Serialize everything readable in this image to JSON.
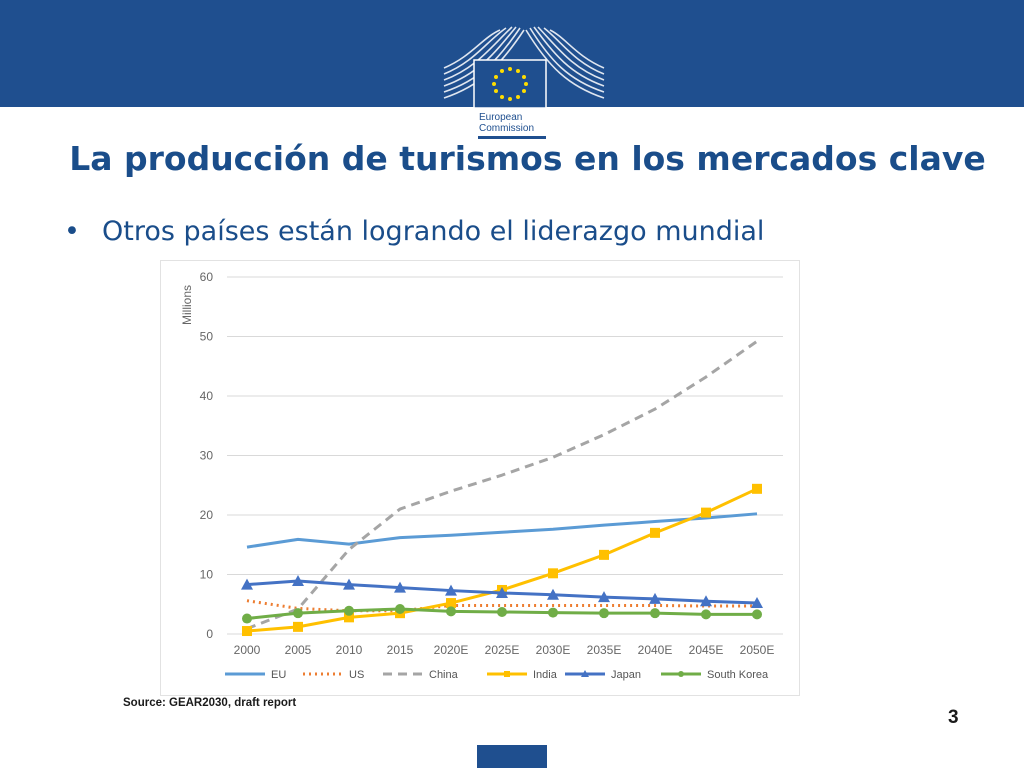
{
  "header": {
    "logo_line1": "European",
    "logo_line2": "Commission"
  },
  "slide": {
    "title": "La producción de turismos en los mercados clave",
    "bullet": "Otros países están logrando el liderazgo mundial",
    "source": "Source: GEAR2030, draft report",
    "page_number": "3"
  },
  "colors": {
    "band": "#1f4f8f",
    "title": "#1a4d8a"
  },
  "chart_data": {
    "type": "line",
    "title": "",
    "xlabel": "",
    "ylabel": "Millions",
    "ylim": [
      0,
      60
    ],
    "yticks": [
      0,
      10,
      20,
      30,
      40,
      50,
      60
    ],
    "grid": true,
    "legend_position": "bottom",
    "categories": [
      "2000",
      "2005",
      "2010",
      "2015",
      "2020E",
      "2025E",
      "2030E",
      "2035E",
      "2040E",
      "2045E",
      "2050E"
    ],
    "series": [
      {
        "name": "EU",
        "color": "#5b9bd5",
        "dash": "solid",
        "marker": "none",
        "values": [
          14.6,
          15.9,
          15.1,
          16.2,
          16.6,
          17.1,
          17.6,
          18.3,
          18.9,
          19.5,
          20.2
        ]
      },
      {
        "name": "US",
        "color": "#ed7d31",
        "dash": "dotted",
        "marker": "none",
        "values": [
          5.6,
          4.3,
          3.9,
          3.9,
          4.8,
          4.8,
          4.8,
          4.8,
          4.8,
          4.7,
          4.7
        ]
      },
      {
        "name": "China",
        "color": "#a5a5a5",
        "dash": "dashed",
        "marker": "none",
        "values": [
          0.9,
          4.2,
          14.2,
          21.0,
          24.0,
          26.7,
          29.7,
          33.5,
          37.8,
          43.2,
          49.2
        ]
      },
      {
        "name": "India",
        "color": "#ffc000",
        "dash": "solid",
        "marker": "square",
        "values": [
          0.5,
          1.2,
          2.8,
          3.5,
          5.2,
          7.4,
          10.2,
          13.3,
          17.0,
          20.4,
          24.4
        ]
      },
      {
        "name": "Japan",
        "color": "#4472c4",
        "dash": "solid",
        "marker": "triangle",
        "values": [
          8.3,
          8.9,
          8.3,
          7.8,
          7.3,
          6.9,
          6.6,
          6.2,
          5.9,
          5.5,
          5.2
        ]
      },
      {
        "name": "South Korea",
        "color": "#70ad47",
        "dash": "solid",
        "marker": "circle",
        "values": [
          2.6,
          3.5,
          3.9,
          4.2,
          3.8,
          3.7,
          3.6,
          3.5,
          3.5,
          3.3,
          3.3
        ]
      }
    ]
  }
}
